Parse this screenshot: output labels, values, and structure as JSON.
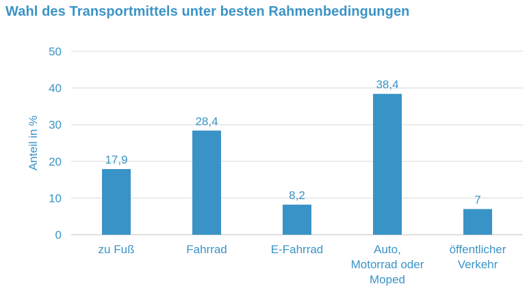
{
  "chart_data": {
    "type": "bar",
    "title": "Wahl des Transportmittels unter besten Rahmenbedingungen",
    "ylabel": "Anteil in %",
    "xlabel": "",
    "ylim": [
      0,
      50
    ],
    "yticks": [
      0,
      10,
      20,
      30,
      40,
      50
    ],
    "ytick_labels": [
      "0",
      "10",
      "20",
      "30",
      "40",
      "50"
    ],
    "categories": [
      [
        "zu Fuß"
      ],
      [
        "Fahrrad"
      ],
      [
        "E-Fahrrad"
      ],
      [
        "Auto,",
        "Motorrad oder",
        "Moped"
      ],
      [
        "öffentlicher",
        "Verkehr"
      ]
    ],
    "values": [
      17.9,
      28.4,
      8.2,
      38.4,
      7
    ],
    "data_labels": [
      "17,9",
      "28,4",
      "8,2",
      "38,4",
      "7"
    ],
    "grid": true,
    "bar_color": "#3A93C6",
    "grid_color": "#D9D9D9"
  }
}
